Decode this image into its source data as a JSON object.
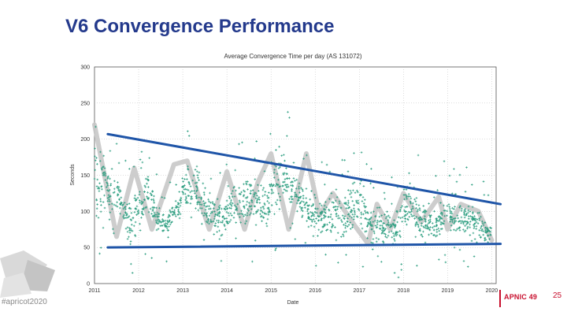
{
  "slide": {
    "title": "V6 Convergence Performance",
    "hashtag": "#apricot2020",
    "logo_text": "APNIC 49",
    "page_number": "25"
  },
  "colors": {
    "title": "#243a8c",
    "points": "#2a9d7f",
    "trend_lines": "#1f55a8",
    "zigzag": "#c8c8c8",
    "logo": "#c8102e"
  },
  "chart_data": {
    "type": "scatter",
    "title": "Average Convergence Time per day (AS 131072)",
    "xlabel": "Date",
    "ylabel": "Seconds",
    "xlim": [
      2011,
      2020.1
    ],
    "ylim": [
      0,
      300
    ],
    "x_ticks": [
      "2011",
      "2012",
      "2013",
      "2014",
      "2015",
      "2016",
      "2017",
      "2018",
      "2019",
      "2020"
    ],
    "y_ticks": [
      0,
      50,
      100,
      150,
      200,
      250,
      300
    ],
    "grid": true,
    "point_density": 18,
    "scatter_envelope": {
      "x": [
        2011.0,
        2011.1,
        2011.3,
        2011.6,
        2011.8,
        2012.0,
        2012.2,
        2012.4,
        2012.6,
        2012.9,
        2013.1,
        2013.4,
        2013.6,
        2013.9,
        2014.2,
        2014.6,
        2014.9,
        2015.1,
        2015.4,
        2015.7,
        2016.1,
        2016.5,
        2016.8,
        2017.0,
        2017.3,
        2017.6,
        2017.9,
        2018.1,
        2018.4,
        2018.7,
        2019.0,
        2019.2,
        2019.5,
        2019.8,
        2020.0
      ],
      "low": [
        55,
        70,
        90,
        85,
        45,
        55,
        80,
        70,
        60,
        80,
        90,
        70,
        60,
        60,
        70,
        70,
        60,
        80,
        95,
        70,
        55,
        50,
        50,
        55,
        40,
        45,
        45,
        55,
        45,
        50,
        60,
        55,
        55,
        50,
        55
      ],
      "high": [
        250,
        220,
        180,
        150,
        120,
        160,
        175,
        120,
        100,
        130,
        190,
        170,
        130,
        120,
        150,
        170,
        150,
        210,
        200,
        150,
        130,
        140,
        145,
        160,
        120,
        110,
        120,
        170,
        130,
        110,
        140,
        130,
        120,
        110,
        80
      ]
    },
    "zigzag_line": {
      "x": [
        2011.0,
        2011.5,
        2011.9,
        2012.3,
        2012.8,
        2013.1,
        2013.6,
        2014.0,
        2014.4,
        2014.7,
        2015.0,
        2015.4,
        2015.8,
        2016.1,
        2016.4,
        2016.9,
        2017.2,
        2017.4,
        2017.7,
        2018.0,
        2018.4,
        2018.8,
        2019.0,
        2019.3,
        2019.7,
        2020.0
      ],
      "y": [
        220,
        65,
        160,
        75,
        165,
        170,
        75,
        155,
        75,
        140,
        180,
        75,
        180,
        95,
        125,
        80,
        55,
        110,
        75,
        125,
        85,
        120,
        75,
        110,
        100,
        60
      ]
    },
    "trend_lines": [
      {
        "x": [
          2011.3,
          2020.2
        ],
        "y": [
          207,
          110
        ]
      },
      {
        "x": [
          2011.3,
          2020.2
        ],
        "y": [
          50,
          55
        ]
      }
    ]
  }
}
